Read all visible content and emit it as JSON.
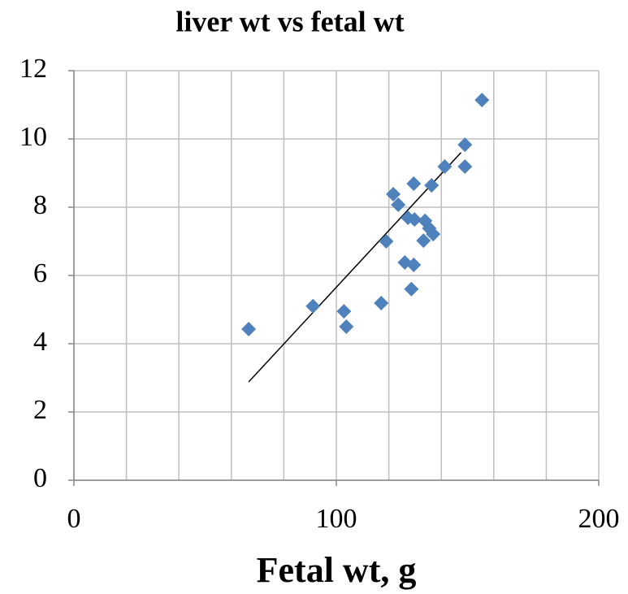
{
  "chart_data": {
    "type": "scatter",
    "title": "liver wt vs fetal wt",
    "xlabel": "Fetal wt, g",
    "xlim": [
      0,
      200
    ],
    "xticks": [
      0,
      100,
      200
    ],
    "xgrid": [
      0,
      20,
      40,
      60,
      80,
      100,
      120,
      140,
      160,
      180,
      200
    ],
    "ylim": [
      0,
      12
    ],
    "yticks": [
      0,
      2,
      4,
      6,
      8,
      10,
      12
    ],
    "grid": true,
    "series": [
      {
        "color": "#4f81bd",
        "x": [
          66.6,
          91.1,
          102.9,
          103.8,
          117.1,
          119.0,
          121.7,
          123.6,
          126.1,
          127.3,
          128.6,
          129.5,
          129.5,
          129.8,
          133.2,
          133.8,
          135.4,
          136.3,
          136.9,
          141.3,
          149.0,
          149.0,
          155.5
        ],
        "values": [
          4.43,
          5.1,
          4.95,
          4.5,
          5.19,
          7.0,
          8.38,
          8.07,
          6.38,
          7.69,
          5.6,
          6.31,
          8.69,
          7.64,
          7.02,
          7.6,
          7.38,
          8.64,
          7.21,
          9.19,
          9.83,
          9.19,
          11.14
        ]
      }
    ],
    "trendline": {
      "color": "#000000",
      "x": [
        66.6,
        147.5
      ],
      "values": [
        2.88,
        9.6
      ]
    }
  }
}
